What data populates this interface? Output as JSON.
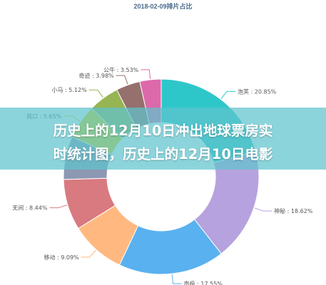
{
  "chart_data": {
    "type": "pie",
    "style": "donut",
    "title": "2018-02-09排片占比",
    "slices": [
      {
        "label": "泡芙",
        "value": 20.85,
        "text": "泡芙 : 20.85%",
        "color": "#2ec7c9"
      },
      {
        "label": "神秘",
        "value": 18.62,
        "text": "神秘 : 18.62%",
        "color": "#b6a2de"
      },
      {
        "label": "南极",
        "value": 17.55,
        "text": "南极 : 17.55%",
        "color": "#5ab1ef"
      },
      {
        "label": "移动",
        "value": 9.09,
        "text": "移动 : 9.09%",
        "color": "#ffb980"
      },
      {
        "label": "无间",
        "value": 8.44,
        "text": "无间 : 8.44%",
        "color": "#d87a80"
      },
      {
        "label": "",
        "value": 0,
        "text": "",
        "color": "#8d98b3"
      },
      {
        "label": "局口",
        "value": 5.65,
        "text": "局口 : 5.65%",
        "color": "#e5cf0d"
      },
      {
        "label": "小马",
        "value": 5.12,
        "text": "小马 : 5.12%",
        "color": "#97b552"
      },
      {
        "label": "奇迹",
        "value": 3.98,
        "text": "奇迹 : 3.98%",
        "color": "#95706d"
      },
      {
        "label": "公牛",
        "value": 3.53,
        "text": "公牛 : 3.53%",
        "color": "#dc69aa"
      }
    ]
  },
  "banner": {
    "line1": "历史上的12月10日冲出地球票房实",
    "line2": "时统计图，历史上的12月10日电影"
  }
}
